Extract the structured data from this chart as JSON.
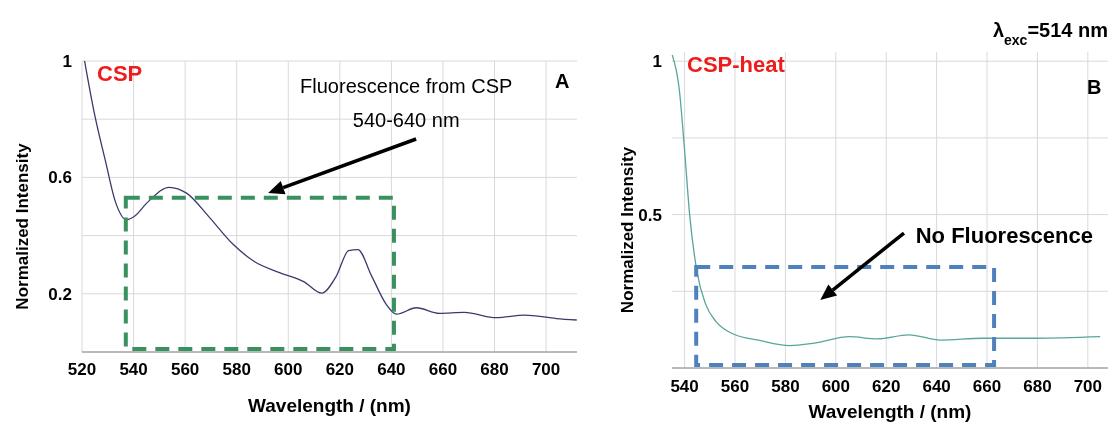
{
  "chart_data": [
    {
      "type": "line",
      "title": "CSP",
      "xlabel": "Wavelength / (nm)",
      "ylabel": "Normalized Intensity",
      "xlim": [
        520,
        712
      ],
      "xticks": [
        520,
        540,
        560,
        580,
        600,
        620,
        640,
        660,
        680,
        700
      ],
      "ylim": [
        0,
        1
      ],
      "yticks": [
        {
          "value": 0,
          "label": null
        },
        0.2,
        {
          "value": 0.4,
          "label": null
        },
        0.6,
        {
          "value": 0.8,
          "label": null
        },
        1
      ],
      "grid": true,
      "annotations": [
        "Fluorescence from CSP\n540-640 nm",
        "A"
      ],
      "series": [
        {
          "color": "#3b3b6b",
          "x": [
            521,
            524.8,
            529,
            533,
            537.2,
            540,
            545.5,
            553.8,
            560.7,
            569,
            578.6,
            587,
            596.6,
            606,
            613,
            618.6,
            623.4,
            627,
            632.4,
            638,
            642,
            649.7,
            658.6,
            668.3,
            680.7,
            691.7,
            704,
            711.9
          ],
          "values": [
            1.0,
            0.82,
            0.66,
            0.515,
            0.455,
            0.464,
            0.515,
            0.566,
            0.545,
            0.467,
            0.37,
            0.31,
            0.273,
            0.242,
            0.202,
            0.26,
            0.348,
            0.352,
            0.26,
            0.164,
            0.13,
            0.152,
            0.133,
            0.136,
            0.118,
            0.127,
            0.115,
            0.11
          ]
        }
      ]
    },
    {
      "type": "line",
      "title": "CSP-heat",
      "xlabel": "Wavelength / (nm)",
      "ylabel": "Normalized Intensity",
      "xlim": [
        535,
        708
      ],
      "xticks": [
        540,
        560,
        580,
        600,
        620,
        640,
        660,
        680,
        700
      ],
      "ylim": [
        0,
        1.03
      ],
      "yticks": [
        {
          "value": 0,
          "label": null
        },
        {
          "value": 0.25,
          "label": null
        },
        0.5,
        {
          "value": 0.75,
          "label": null
        },
        1
      ],
      "grid": true,
      "annotations": [
        "No Fluorescence",
        "B",
        "λ$_{exc}$=514 nm"
      ],
      "series": [
        {
          "color": "#5aa59a",
          "x": [
            535.1,
            537.9,
            540,
            542,
            544.9,
            548.3,
            552.5,
            559.5,
            569.2,
            581.7,
            591.5,
            605.4,
            616.5,
            629,
            641.6,
            658.3,
            679.1,
            704.9
          ],
          "values": [
            1.02,
            0.907,
            0.709,
            0.5,
            0.314,
            0.209,
            0.151,
            0.11,
            0.091,
            0.073,
            0.081,
            0.102,
            0.095,
            0.108,
            0.091,
            0.097,
            0.097,
            0.102
          ]
        }
      ]
    }
  ]
}
